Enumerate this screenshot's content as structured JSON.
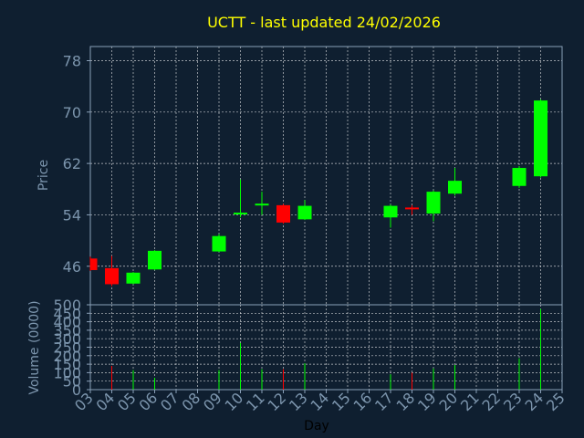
{
  "title": "UCTT - last updated 24/02/2026",
  "colors": {
    "background": "#0f1f30",
    "up": "#00ff00",
    "down": "#ff0000",
    "title": "#ffff00",
    "axis_text": "#7c95ad"
  },
  "chart_data": [
    {
      "type": "candlestick",
      "ylabel": "Price",
      "ylim": [
        40.0,
        80.2
      ],
      "yticks": [
        46,
        54,
        62,
        70,
        78
      ],
      "grid": true,
      "candles": [
        {
          "day": "03",
          "open": 47.2,
          "high": 47.5,
          "low": 45.3,
          "close": 45.4
        },
        {
          "day": "04",
          "open": 45.7,
          "high": 47.6,
          "low": 42.9,
          "close": 43.2
        },
        {
          "day": "05",
          "open": 43.3,
          "high": 45.1,
          "low": 43.2,
          "close": 45.0
        },
        {
          "day": "06",
          "open": 45.5,
          "high": 48.5,
          "low": 45.4,
          "close": 48.4
        },
        {
          "day": "09",
          "open": 48.3,
          "high": 51.0,
          "low": 48.2,
          "close": 50.7
        },
        {
          "day": "10",
          "open": 54.0,
          "high": 59.5,
          "low": 53.6,
          "close": 54.2
        },
        {
          "day": "11",
          "open": 55.5,
          "high": 57.6,
          "low": 54.0,
          "close": 55.6
        },
        {
          "day": "12",
          "open": 55.5,
          "high": 55.7,
          "low": 52.6,
          "close": 52.8
        },
        {
          "day": "13",
          "open": 53.3,
          "high": 56.3,
          "low": 53.2,
          "close": 55.4
        },
        {
          "day": "17",
          "open": 53.6,
          "high": 55.6,
          "low": 52.0,
          "close": 55.4
        },
        {
          "day": "18",
          "open": 55.0,
          "high": 55.5,
          "low": 54.0,
          "close": 54.8
        },
        {
          "day": "19",
          "open": 54.2,
          "high": 57.8,
          "low": 53.0,
          "close": 57.6
        },
        {
          "day": "20",
          "open": 57.3,
          "high": 61.3,
          "low": 57.0,
          "close": 59.3
        },
        {
          "day": "23",
          "open": 58.5,
          "high": 61.6,
          "low": 58.2,
          "close": 61.3
        },
        {
          "day": "24",
          "open": 60.0,
          "high": 72.0,
          "low": 59.8,
          "close": 71.8
        }
      ]
    },
    {
      "type": "bar",
      "xlabel": "Day",
      "ylabel": "Volume (0000)",
      "ylim": [
        0,
        500
      ],
      "yticks": [
        0,
        50,
        100,
        150,
        200,
        250,
        300,
        350,
        400,
        450,
        500
      ],
      "grid": true,
      "categories": [
        "03",
        "04",
        "05",
        "06",
        "07",
        "08",
        "09",
        "10",
        "11",
        "12",
        "13",
        "14",
        "15",
        "16",
        "17",
        "18",
        "19",
        "20",
        "21",
        "22",
        "23",
        "24",
        "25"
      ],
      "values": [
        {
          "day": "04",
          "volume": 140,
          "color": "down"
        },
        {
          "day": "05",
          "volume": 115,
          "color": "up"
        },
        {
          "day": "06",
          "volume": 70,
          "color": "up"
        },
        {
          "day": "09",
          "volume": 115,
          "color": "up"
        },
        {
          "day": "10",
          "volume": 275,
          "color": "up"
        },
        {
          "day": "11",
          "volume": 120,
          "color": "up"
        },
        {
          "day": "12",
          "volume": 120,
          "color": "down"
        },
        {
          "day": "13",
          "volume": 155,
          "color": "up"
        },
        {
          "day": "17",
          "volume": 90,
          "color": "up"
        },
        {
          "day": "18",
          "volume": 100,
          "color": "down"
        },
        {
          "day": "19",
          "volume": 125,
          "color": "up"
        },
        {
          "day": "20",
          "volume": 145,
          "color": "up"
        },
        {
          "day": "23",
          "volume": 185,
          "color": "up"
        },
        {
          "day": "24",
          "volume": 475,
          "color": "up"
        }
      ]
    }
  ]
}
